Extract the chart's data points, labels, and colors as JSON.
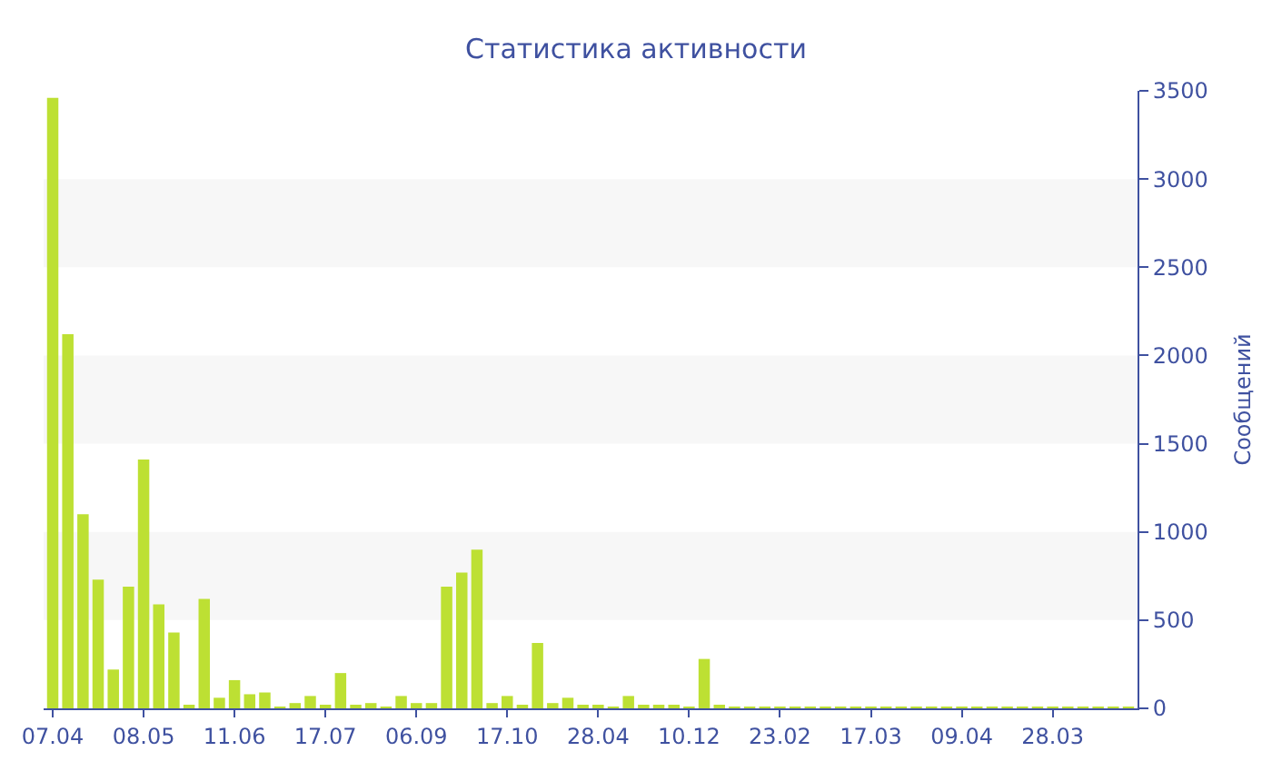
{
  "chart_data": {
    "type": "bar",
    "title": "Статистика активности",
    "ylabel": "Сообщений",
    "categories": [
      "07.04",
      null,
      null,
      null,
      null,
      null,
      "08.05",
      null,
      null,
      null,
      null,
      null,
      "11.06",
      null,
      null,
      null,
      null,
      null,
      "17.07",
      null,
      null,
      null,
      null,
      null,
      "06.09",
      null,
      null,
      null,
      null,
      null,
      "17.10",
      null,
      null,
      null,
      null,
      null,
      "28.04",
      null,
      null,
      null,
      null,
      null,
      "10.12",
      null,
      null,
      null,
      null,
      null,
      "23.02",
      null,
      null,
      null,
      null,
      null,
      "17.03",
      null,
      null,
      null,
      null,
      null,
      "09.04",
      null,
      null,
      null,
      null,
      null,
      "28.03",
      null,
      null,
      null,
      null,
      null
    ],
    "values": [
      3460,
      2120,
      1100,
      730,
      220,
      690,
      1410,
      590,
      430,
      20,
      620,
      60,
      160,
      80,
      90,
      10,
      30,
      70,
      20,
      200,
      20,
      30,
      10,
      70,
      30,
      30,
      690,
      770,
      900,
      30,
      70,
      20,
      370,
      30,
      60,
      20,
      20,
      10,
      70,
      20,
      20,
      20,
      10,
      280,
      20,
      10,
      10,
      10,
      10,
      10,
      10,
      10,
      10,
      10,
      10,
      10,
      10,
      10,
      10,
      10,
      10,
      10,
      10,
      10,
      10,
      10,
      10,
      10,
      10,
      10,
      10,
      10
    ],
    "color": "#bde033",
    "ylim": [
      0,
      3500
    ],
    "yticks": [
      0,
      500,
      1000,
      1500,
      2000,
      2500,
      3000,
      3500
    ],
    "bands": [
      {
        "axis": "y",
        "from": 500,
        "to": 1000,
        "color": "#f7f7f7"
      },
      {
        "axis": "y",
        "from": 1500,
        "to": 2000,
        "color": "#f7f7f7"
      },
      {
        "axis": "y",
        "from": 2500,
        "to": 3000,
        "color": "#f7f7f7"
      }
    ]
  }
}
